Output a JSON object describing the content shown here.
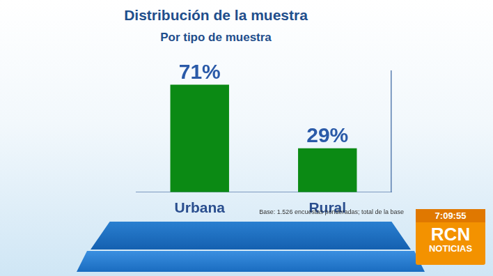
{
  "chart_data": {
    "type": "bar",
    "title": "Distribución de la muestra",
    "subtitle": "Por tipo de muestra",
    "categories": [
      "Urbana",
      "Rural"
    ],
    "values": [
      71,
      29
    ],
    "value_labels": [
      "71%",
      "29%"
    ],
    "data_labels": true,
    "color": "#0b8a14",
    "ylim": [
      0,
      80
    ],
    "grid": false,
    "tick_labels": "x",
    "annotation": "Base: 1.526 encuestas ponderadas; total de la base"
  },
  "overlay": {
    "time": "7:09:55",
    "logo": "RCN",
    "channel": "NOTICIAS"
  }
}
